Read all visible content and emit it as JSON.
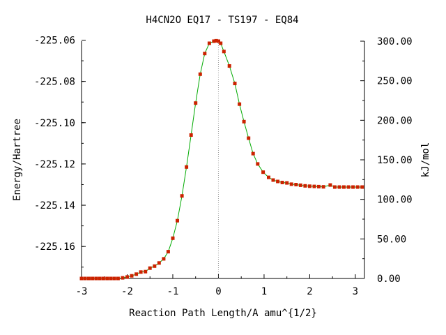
{
  "chart_data": {
    "type": "line",
    "title": "H4CN2O   EQ17 - TS197 - EQ84",
    "xlabel": "Reaction Path Length/A amu^{1/2}",
    "ylabel": "Energy/Hartree",
    "y2label": "kJ/mol",
    "xlim": [
      -3.0,
      3.2
    ],
    "ylim": [
      -225.1755,
      -225.0605
    ],
    "y2lim": [
      0,
      300
    ],
    "x_ticks": [
      "-3",
      "-2",
      "-1",
      "0",
      "1",
      "2",
      "3"
    ],
    "x_tick_values": [
      -3,
      -2,
      -1,
      0,
      1,
      2,
      3
    ],
    "y_ticks": [
      "-225.06",
      "-225.08",
      "-225.10",
      "-225.12",
      "-225.14",
      "-225.16"
    ],
    "y_tick_values": [
      -225.06,
      -225.08,
      -225.1,
      -225.12,
      -225.14,
      -225.16
    ],
    "y2_ticks": [
      "300.00",
      "250.00",
      "200.00",
      "150.00",
      "100.00",
      "50.00",
      "0.00"
    ],
    "y2_tick_values": [
      300,
      250,
      200,
      150,
      100,
      50,
      0
    ],
    "ts_marker_x": 0.0,
    "grid": false,
    "line_color": "#00aa00",
    "marker_color": "#cc2200",
    "axis_color": "#000000",
    "marker_line_color": "#999999",
    "series": [
      {
        "x": [
          -3.0,
          -2.92,
          -2.84,
          -2.76,
          -2.68,
          -2.6,
          -2.52,
          -2.44,
          -2.36,
          -2.28,
          -2.2,
          -2.1,
          -2.0,
          -1.9,
          -1.8,
          -1.7,
          -1.6,
          -1.5,
          -1.4,
          -1.3,
          -1.2,
          -1.1,
          -1.0,
          -0.9,
          -0.8,
          -0.7,
          -0.6,
          -0.5,
          -0.4,
          -0.3,
          -0.2,
          -0.1,
          -0.05,
          0.0,
          0.05,
          0.12,
          0.24,
          0.36,
          0.46,
          0.56,
          0.66,
          0.76,
          0.86,
          0.98,
          1.1,
          1.2,
          1.3,
          1.4,
          1.5,
          1.6,
          1.7,
          1.8,
          1.9,
          2.0,
          2.1,
          2.2,
          2.3,
          2.45,
          2.55,
          2.65,
          2.75,
          2.85,
          2.95,
          3.05,
          3.15
        ],
        "y": [
          -225.1755,
          -225.1755,
          -225.1755,
          -225.1755,
          -225.1755,
          -225.1755,
          -225.1755,
          -225.1755,
          -225.1755,
          -225.1755,
          -225.1755,
          -225.1752,
          -225.1748,
          -225.1742,
          -225.1734,
          -225.1724,
          -225.1722,
          -225.1705,
          -225.1695,
          -225.168,
          -225.166,
          -225.1625,
          -225.156,
          -225.1475,
          -225.1355,
          -225.1215,
          -225.106,
          -225.0905,
          -225.0765,
          -225.0665,
          -225.0615,
          -225.0605,
          -225.0603,
          -225.0605,
          -225.0615,
          -225.0655,
          -225.0725,
          -225.081,
          -225.091,
          -225.0995,
          -225.1075,
          -225.115,
          -225.12,
          -225.124,
          -225.1265,
          -225.1278,
          -225.1285,
          -225.129,
          -225.1292,
          -225.1298,
          -225.13,
          -225.1303,
          -225.1306,
          -225.1308,
          -225.1309,
          -225.131,
          -225.1311,
          -225.1302,
          -225.1312,
          -225.1312,
          -225.1312,
          -225.1312,
          -225.1312,
          -225.1312,
          -225.1312
        ]
      }
    ]
  }
}
